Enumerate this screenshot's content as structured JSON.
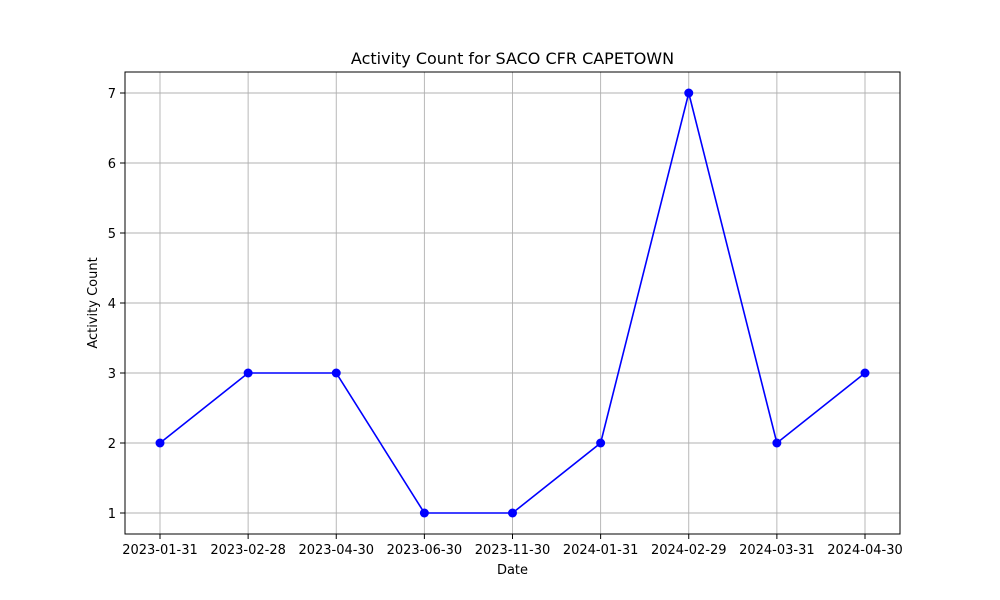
{
  "chart_data": {
    "type": "line",
    "title": "Activity Count for SACO CFR CAPETOWN",
    "xlabel": "Date",
    "ylabel": "Activity Count",
    "categories": [
      "2023-01-31",
      "2023-02-28",
      "2023-04-30",
      "2023-06-30",
      "2023-11-30",
      "2024-01-31",
      "2024-02-29",
      "2024-03-31",
      "2024-04-30"
    ],
    "series": [
      {
        "values": [
          2,
          3,
          3,
          1,
          1,
          2,
          7,
          2,
          3
        ],
        "color": "#0000ff",
        "marker": "circle"
      }
    ],
    "ylim": [
      0.7,
      7.3
    ],
    "yticks": [
      1,
      2,
      3,
      4,
      5,
      6,
      7
    ],
    "grid": true
  }
}
